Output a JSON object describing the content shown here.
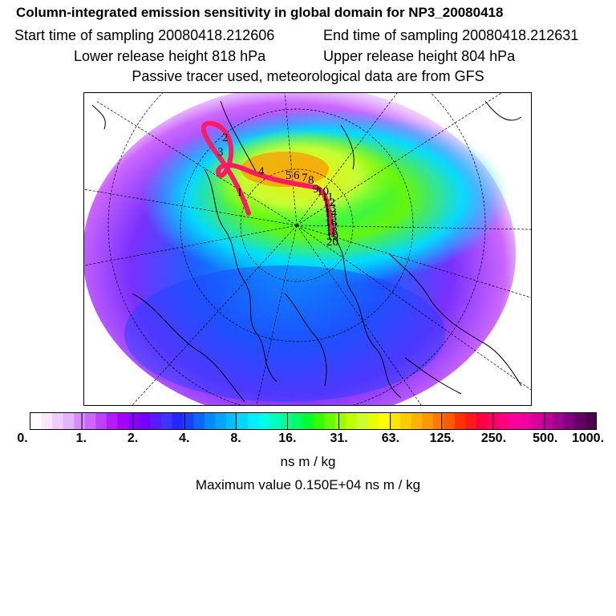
{
  "header": {
    "title": "Column-integrated emission sensitivity in global domain for NP3_20080418",
    "start_time": "Start time of sampling 20080418.212606",
    "end_time": "End time of sampling 20080418.212631",
    "lower_release": "Lower release height  818 hPa",
    "upper_release": "Upper release height  804 hPa",
    "tracer_note": "Passive tracer used, meteorological data are from GFS"
  },
  "map": {
    "track_labels": [
      "1",
      "2",
      "3",
      "4",
      "5",
      "6",
      "7",
      "8",
      "9",
      "10",
      "11",
      "12",
      "13",
      "14",
      "15",
      "16",
      "17",
      "18",
      "19",
      "20"
    ]
  },
  "colorbar": {
    "tick_labels": [
      "0.",
      "1.",
      "2.",
      "4.",
      "8.",
      "16.",
      "31.",
      "63.",
      "125.",
      "250.",
      "500.",
      "1000."
    ],
    "colors": [
      "#ffffff",
      "#f9e6ff",
      "#f0ccff",
      "#e6b3ff",
      "#d98cff",
      "#cc66ff",
      "#bf40ff",
      "#b31aff",
      "#a600ff",
      "#8c00ff",
      "#7300ff",
      "#5a1aff",
      "#4033ff",
      "#2626ff",
      "#1a40ff",
      "#0d66ff",
      "#008cff",
      "#00a6ff",
      "#00bfff",
      "#00d9ff",
      "#00f0ff",
      "#00ffe6",
      "#00ffbf",
      "#00ff99",
      "#00ff66",
      "#00ff33",
      "#33ff00",
      "#66ff00",
      "#99ff00",
      "#bfff00",
      "#ccff33",
      "#e6ff00",
      "#ffff00",
      "#ffe600",
      "#ffcc00",
      "#ffb300",
      "#ff9900",
      "#ff7a00",
      "#ff5a00",
      "#ff3300",
      "#ff1a1a",
      "#ff0040",
      "#ff0066",
      "#ff0080",
      "#ff0099",
      "#f000a0",
      "#d9009e",
      "#c0009a",
      "#a00090",
      "#800080",
      "#660066",
      "#4d004d"
    ]
  },
  "unit_label": "ns m / kg",
  "max_value_label": "Maximum value  0.150E+04 ns m / kg"
}
